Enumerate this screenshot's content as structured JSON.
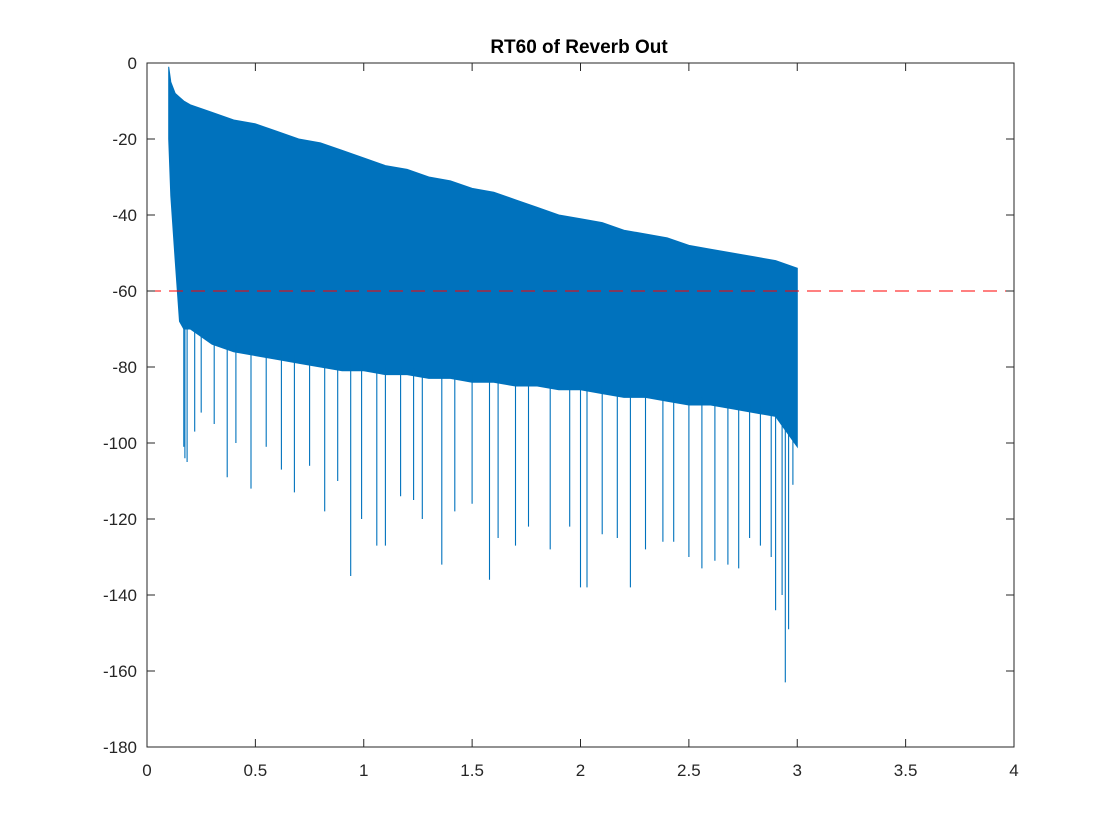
{
  "chart_data": {
    "type": "line",
    "title": "RT60 of Reverb Out",
    "xlabel": "",
    "ylabel": "",
    "xlim": [
      0,
      4
    ],
    "ylim": [
      -180,
      0
    ],
    "xticks": [
      0,
      0.5,
      1,
      1.5,
      2,
      2.5,
      3,
      3.5,
      4
    ],
    "yticks": [
      0,
      -20,
      -40,
      -60,
      -80,
      -100,
      -120,
      -140,
      -160,
      -180
    ],
    "xtick_labels": [
      "0",
      "0.5",
      "1",
      "1.5",
      "2",
      "2.5",
      "3",
      "3.5",
      "4"
    ],
    "ytick_labels": [
      "0",
      "-20",
      "-40",
      "-60",
      "-80",
      "-100",
      "-120",
      "-140",
      "-160",
      "-180"
    ],
    "grid": false,
    "box": true,
    "series": [
      {
        "style": "filled-envelope",
        "color": "#0072BD",
        "x": [
          0.1,
          0.11,
          0.13,
          0.15,
          0.17,
          0.2,
          0.25,
          0.3,
          0.4,
          0.5,
          0.6,
          0.7,
          0.8,
          0.9,
          1.0,
          1.1,
          1.2,
          1.3,
          1.4,
          1.5,
          1.6,
          1.7,
          1.8,
          1.9,
          2.0,
          2.1,
          2.2,
          2.3,
          2.4,
          2.5,
          2.6,
          2.7,
          2.8,
          2.9,
          3.0
        ],
        "upper": [
          -1,
          -5,
          -8,
          -9,
          -10,
          -11,
          -12,
          -13,
          -15,
          -16,
          -18,
          -20,
          -21,
          -23,
          -25,
          -27,
          -28,
          -30,
          -31,
          -33,
          -34,
          -36,
          -38,
          -40,
          -41,
          -42,
          -44,
          -45,
          -46,
          -48,
          -49,
          -50,
          -51,
          -52,
          -54
        ],
        "lower": [
          -20,
          -35,
          -52,
          -68,
          -70,
          -70,
          -72,
          -74,
          -76,
          -77,
          -78,
          -79,
          -80,
          -81,
          -81,
          -82,
          -82,
          -83,
          -83,
          -84,
          -84,
          -85,
          -85,
          -86,
          -86,
          -87,
          -88,
          -88,
          -89,
          -90,
          -90,
          -91,
          -92,
          -93,
          -101
        ],
        "spikes": [
          [
            0.17,
            -101
          ],
          [
            0.175,
            -104
          ],
          [
            0.185,
            -105
          ],
          [
            0.22,
            -97
          ],
          [
            0.25,
            -92
          ],
          [
            0.31,
            -95
          ],
          [
            0.37,
            -109
          ],
          [
            0.41,
            -100
          ],
          [
            0.48,
            -112
          ],
          [
            0.55,
            -101
          ],
          [
            0.62,
            -107
          ],
          [
            0.68,
            -113
          ],
          [
            0.75,
            -106
          ],
          [
            0.82,
            -118
          ],
          [
            0.88,
            -110
          ],
          [
            0.94,
            -135
          ],
          [
            0.99,
            -120
          ],
          [
            1.06,
            -127
          ],
          [
            1.1,
            -127
          ],
          [
            1.17,
            -114
          ],
          [
            1.23,
            -115
          ],
          [
            1.27,
            -120
          ],
          [
            1.36,
            -132
          ],
          [
            1.42,
            -118
          ],
          [
            1.5,
            -116
          ],
          [
            1.58,
            -136
          ],
          [
            1.62,
            -125
          ],
          [
            1.7,
            -127
          ],
          [
            1.76,
            -122
          ],
          [
            1.86,
            -128
          ],
          [
            1.95,
            -122
          ],
          [
            2.0,
            -138
          ],
          [
            2.03,
            -138
          ],
          [
            2.1,
            -124
          ],
          [
            2.17,
            -125
          ],
          [
            2.23,
            -138
          ],
          [
            2.3,
            -128
          ],
          [
            2.38,
            -126
          ],
          [
            2.43,
            -126
          ],
          [
            2.5,
            -130
          ],
          [
            2.56,
            -133
          ],
          [
            2.62,
            -131
          ],
          [
            2.68,
            -132
          ],
          [
            2.73,
            -133
          ],
          [
            2.78,
            -125
          ],
          [
            2.83,
            -127
          ],
          [
            2.88,
            -130
          ],
          [
            2.9,
            -144
          ],
          [
            2.93,
            -140
          ],
          [
            2.945,
            -163
          ],
          [
            2.96,
            -149
          ],
          [
            2.98,
            -111
          ]
        ]
      },
      {
        "name": "",
        "style": "dashed-hline",
        "color": "#FF0000",
        "y": -60,
        "x": [
          0,
          4
        ]
      }
    ]
  }
}
